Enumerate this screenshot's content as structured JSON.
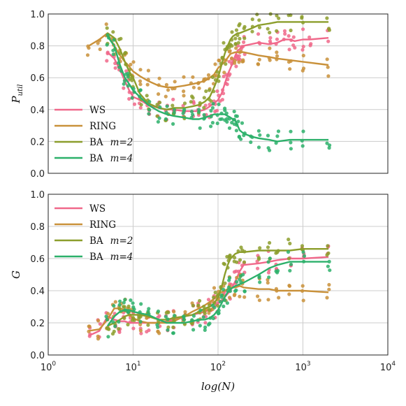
{
  "chart_data": [
    {
      "type": "line",
      "xscale": "log",
      "xlim": [
        3,
        2000
      ],
      "ylim": [
        0.0,
        1.0
      ],
      "grid": true,
      "legend_position": "lower-left",
      "ylabel_main": "P",
      "ylabel_sub": "util",
      "xlabel": "",
      "yticks": [
        "0.0",
        "0.2",
        "0.4",
        "0.6",
        "0.8",
        "1.0"
      ],
      "series": [
        {
          "name": "WS",
          "math": "",
          "color": "#f0688a",
          "x": [
            5,
            6,
            7,
            8,
            9,
            10,
            12,
            15,
            20,
            25,
            30,
            40,
            50,
            60,
            70,
            80,
            90,
            100,
            110,
            120,
            130,
            140,
            150,
            160,
            170,
            180,
            190,
            200,
            300,
            400,
            500,
            600,
            700,
            800,
            1000,
            1200,
            2000
          ],
          "y": [
            0.76,
            0.72,
            0.65,
            0.58,
            0.52,
            0.48,
            0.46,
            0.43,
            0.41,
            0.4,
            0.4,
            0.39,
            0.39,
            0.39,
            0.4,
            0.42,
            0.44,
            0.46,
            0.5,
            0.56,
            0.62,
            0.66,
            0.7,
            0.74,
            0.77,
            0.78,
            0.79,
            0.8,
            0.82,
            0.81,
            0.82,
            0.84,
            0.84,
            0.83,
            0.84,
            0.84,
            0.85
          ]
        },
        {
          "name": "RING",
          "math": "",
          "color": "#c9913a",
          "x": [
            3,
            4,
            5,
            6,
            7,
            8,
            9,
            10,
            12,
            15,
            20,
            25,
            30,
            40,
            50,
            60,
            70,
            80,
            90,
            100,
            120,
            140,
            160,
            180,
            200,
            300,
            400,
            500,
            700,
            1000,
            2000
          ],
          "y": [
            0.8,
            0.84,
            0.88,
            0.8,
            0.74,
            0.7,
            0.67,
            0.64,
            0.61,
            0.58,
            0.55,
            0.54,
            0.54,
            0.55,
            0.56,
            0.57,
            0.58,
            0.6,
            0.62,
            0.66,
            0.7,
            0.75,
            0.76,
            0.76,
            0.76,
            0.74,
            0.73,
            0.72,
            0.71,
            0.7,
            0.68
          ]
        },
        {
          "name": "BA",
          "math": "m=2",
          "color": "#8c9e2c",
          "x": [
            5,
            6,
            7,
            8,
            9,
            10,
            12,
            15,
            20,
            25,
            30,
            40,
            50,
            60,
            70,
            80,
            90,
            100,
            110,
            120,
            130,
            140,
            150,
            160,
            170,
            180,
            200,
            250,
            300,
            400,
            500,
            700,
            1000,
            2000
          ],
          "y": [
            0.88,
            0.85,
            0.78,
            0.7,
            0.64,
            0.6,
            0.5,
            0.44,
            0.41,
            0.4,
            0.41,
            0.41,
            0.42,
            0.43,
            0.45,
            0.48,
            0.54,
            0.6,
            0.68,
            0.75,
            0.8,
            0.84,
            0.86,
            0.87,
            0.88,
            0.88,
            0.89,
            0.91,
            0.93,
            0.94,
            0.95,
            0.95,
            0.95,
            0.95
          ]
        },
        {
          "name": "BA",
          "math": "m=4",
          "color": "#2cb06a",
          "x": [
            5,
            6,
            7,
            8,
            9,
            10,
            12,
            15,
            20,
            25,
            30,
            40,
            50,
            60,
            70,
            80,
            90,
            100,
            110,
            120,
            130,
            140,
            150,
            160,
            170,
            180,
            200,
            250,
            300,
            400,
            500,
            700,
            1000,
            2000
          ],
          "y": [
            0.86,
            0.8,
            0.68,
            0.6,
            0.56,
            0.52,
            0.48,
            0.43,
            0.39,
            0.37,
            0.36,
            0.35,
            0.34,
            0.34,
            0.35,
            0.36,
            0.37,
            0.37,
            0.37,
            0.37,
            0.36,
            0.35,
            0.34,
            0.33,
            0.3,
            0.27,
            0.25,
            0.23,
            0.22,
            0.21,
            0.2,
            0.21,
            0.21,
            0.21
          ]
        }
      ]
    },
    {
      "type": "line",
      "xscale": "log",
      "xlim": [
        1,
        10000
      ],
      "ylim": [
        0.0,
        1.0
      ],
      "grid": true,
      "legend_position": "upper-left",
      "ylabel_main": "G",
      "ylabel_sub": "",
      "xlabel": "log(N)",
      "yticks": [
        "0.0",
        "0.2",
        "0.4",
        "0.6",
        "0.8",
        "1.0"
      ],
      "xticks": [
        {
          "base": "10",
          "exp": "0",
          "value": 1
        },
        {
          "base": "10",
          "exp": "1",
          "value": 10
        },
        {
          "base": "10",
          "exp": "2",
          "value": 100
        },
        {
          "base": "10",
          "exp": "3",
          "value": 1000
        },
        {
          "base": "10",
          "exp": "4",
          "value": 10000
        }
      ],
      "series": [
        {
          "name": "WS",
          "math": "",
          "color": "#f0688a",
          "x": [
            3,
            4,
            5,
            6,
            7,
            8,
            9,
            10,
            12,
            15,
            20,
            25,
            30,
            40,
            50,
            60,
            70,
            80,
            90,
            100,
            120,
            140,
            160,
            180,
            200,
            300,
            400,
            500,
            700,
            1000,
            2000
          ],
          "y": [
            0.12,
            0.15,
            0.24,
            0.22,
            0.21,
            0.21,
            0.2,
            0.2,
            0.2,
            0.2,
            0.2,
            0.21,
            0.22,
            0.24,
            0.25,
            0.26,
            0.27,
            0.28,
            0.3,
            0.32,
            0.36,
            0.4,
            0.46,
            0.52,
            0.56,
            0.57,
            0.58,
            0.59,
            0.6,
            0.6,
            0.61
          ]
        },
        {
          "name": "RING",
          "math": "",
          "color": "#c9913a",
          "x": [
            3,
            4,
            5,
            6,
            7,
            8,
            9,
            10,
            12,
            15,
            20,
            25,
            30,
            40,
            50,
            60,
            70,
            80,
            90,
            100,
            120,
            140,
            160,
            180,
            200,
            300,
            400,
            500,
            700,
            1000,
            2000
          ],
          "y": [
            0.15,
            0.16,
            0.22,
            0.29,
            0.29,
            0.28,
            0.25,
            0.23,
            0.21,
            0.2,
            0.2,
            0.2,
            0.21,
            0.24,
            0.27,
            0.29,
            0.31,
            0.33,
            0.35,
            0.38,
            0.4,
            0.42,
            0.42,
            0.43,
            0.42,
            0.41,
            0.41,
            0.4,
            0.4,
            0.4,
            0.39
          ]
        },
        {
          "name": "BA",
          "math": "m=2",
          "color": "#8c9e2c",
          "x": [
            5,
            6,
            7,
            8,
            9,
            10,
            12,
            15,
            20,
            25,
            30,
            40,
            50,
            60,
            70,
            80,
            90,
            100,
            110,
            120,
            130,
            140,
            160,
            180,
            200,
            300,
            400,
            500,
            700,
            1000,
            2000
          ],
          "y": [
            0.18,
            0.2,
            0.22,
            0.24,
            0.25,
            0.25,
            0.25,
            0.24,
            0.22,
            0.22,
            0.23,
            0.24,
            0.25,
            0.27,
            0.29,
            0.3,
            0.32,
            0.36,
            0.42,
            0.5,
            0.56,
            0.6,
            0.63,
            0.64,
            0.64,
            0.65,
            0.65,
            0.65,
            0.65,
            0.66,
            0.66
          ]
        },
        {
          "name": "BA",
          "math": "m=4",
          "color": "#2cb06a",
          "x": [
            5,
            6,
            7,
            8,
            9,
            10,
            12,
            15,
            20,
            25,
            30,
            40,
            50,
            60,
            70,
            80,
            90,
            100,
            110,
            120,
            130,
            140,
            160,
            180,
            200,
            300,
            400,
            500,
            700,
            1000,
            2000
          ],
          "y": [
            0.18,
            0.24,
            0.27,
            0.28,
            0.28,
            0.27,
            0.26,
            0.25,
            0.22,
            0.2,
            0.2,
            0.2,
            0.21,
            0.22,
            0.22,
            0.23,
            0.25,
            0.28,
            0.32,
            0.36,
            0.39,
            0.41,
            0.43,
            0.44,
            0.45,
            0.5,
            0.54,
            0.56,
            0.58,
            0.58,
            0.58
          ]
        }
      ]
    }
  ]
}
